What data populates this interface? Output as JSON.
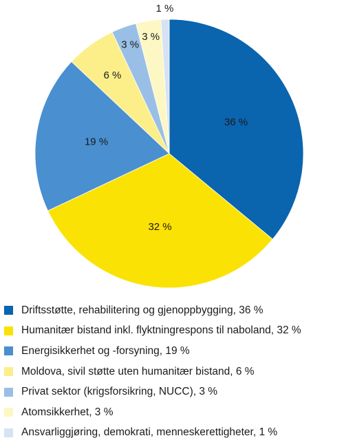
{
  "chart_data": {
    "type": "pie",
    "title": "",
    "start": "12 o'clock, clockwise",
    "legend_placement": "bottom",
    "slices": [
      {
        "label": "Driftsstøtte, rehabilitering og gjenoppbygging",
        "value": 36,
        "display": "36 %",
        "color": "#0a64ae"
      },
      {
        "label": "Humanitær bistand inkl. flyktningrespons til naboland",
        "value": 32,
        "display": "32 %",
        "color": "#fbe205"
      },
      {
        "label": "Energisikkerhet og -forsyning",
        "value": 19,
        "display": "19 %",
        "color": "#4a8fd0"
      },
      {
        "label": "Moldova, sivil støtte uten humanitær bistand",
        "value": 6,
        "display": "6 %",
        "color": "#fcef8a"
      },
      {
        "label": "Privat sektor (krigsforsikring, NUCC)",
        "value": 3,
        "display": "3 %",
        "color": "#9abfe6"
      },
      {
        "label": "Atomsikkerhet",
        "value": 3,
        "display": "3 %",
        "color": "#fdf7c4"
      },
      {
        "label": "Ansvarliggjøring, demokrati, menneskerettigheter",
        "value": 1,
        "display": "1 %",
        "color": "#d6e3f3"
      }
    ]
  },
  "legend": {
    "items": [
      "Driftsstøtte, rehabilitering og gjenoppbygging, 36 %",
      "Humanitær bistand inkl. flyktningrespons til naboland, 32 %",
      "Energisikkerhet og -forsyning, 19 %",
      "Moldova, sivil støtte uten humanitær bistand, 6 %",
      "Privat sektor (krigsforsikring, NUCC), 3 %",
      "Atomsikkerhet, 3 %",
      "Ansvarliggjøring, demokrati, menneskerettigheter, 1 %"
    ]
  }
}
